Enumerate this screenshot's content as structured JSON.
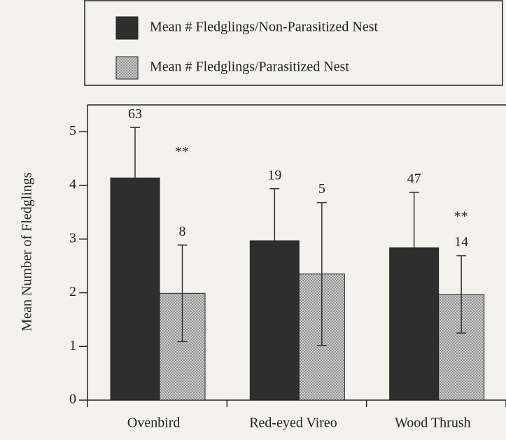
{
  "chart_data": {
    "type": "bar",
    "ylabel": "Mean Number of Fledglings",
    "categories": [
      "Ovenbird",
      "Red-eyed Vireo",
      "Wood Thrush"
    ],
    "series": [
      {
        "name": "Mean # Fledglings/Non-Parasitized Nest",
        "color": "#2e2e2e",
        "values": [
          4.14,
          2.97,
          2.84
        ],
        "errors": [
          0.94,
          0.97,
          1.03
        ],
        "sample_sizes": [
          63,
          19,
          47
        ]
      },
      {
        "name": "Mean # Fledglings/Parasitized Nest",
        "color": "#c9c9c9",
        "values": [
          1.99,
          2.35,
          1.97
        ],
        "errors": [
          0.9,
          1.33,
          0.72
        ],
        "sample_sizes": [
          8,
          5,
          14
        ]
      }
    ],
    "significance": [
      "**",
      null,
      "**"
    ],
    "ylim": [
      0,
      5.5
    ],
    "yticks": [
      0,
      1,
      2,
      3,
      4,
      5
    ],
    "grid": false
  }
}
